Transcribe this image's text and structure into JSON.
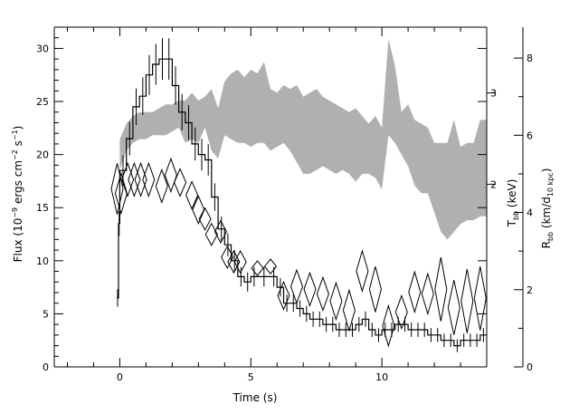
{
  "chart_data": {
    "type": "line",
    "title": "",
    "xlabel": "Time (s)",
    "ylabel_left": {
      "main": "Flux (10",
      "exp1": "−9",
      "mid1": " ergs cm",
      "exp2": "−2",
      "mid2": " s",
      "exp3": "−1",
      "end": ")"
    },
    "ylabel_right_1": {
      "main": "T",
      "sub": "bb",
      "end": " (keV)"
    },
    "ylabel_right_2": {
      "main": "R",
      "sub1": "bb",
      "mid": " (km/d",
      "sub2": "10 kpc",
      "end": ")"
    },
    "xlim": [
      -2.5,
      14
    ],
    "ylim": [
      0,
      32
    ],
    "ylim_T": [
      0,
      3.72
    ],
    "ylim_R": [
      0,
      8.8
    ],
    "x_ticks": [
      0,
      5,
      10
    ],
    "y_ticks": [
      0,
      5,
      10,
      15,
      20,
      25,
      30
    ],
    "T_ticks": [
      2,
      3
    ],
    "R_ticks": [
      0,
      2,
      4,
      6,
      8
    ],
    "grid": false,
    "series": [
      {
        "kind": "flux_histogram",
        "x": [
          -0.12,
          -0.05,
          0.0,
          0.25,
          0.5,
          0.75,
          1.0,
          1.25,
          1.5,
          1.75,
          2.0,
          2.25,
          2.5,
          2.75,
          3.0,
          3.25,
          3.5,
          3.75,
          4.0,
          4.25,
          4.5,
          4.75,
          5.0,
          5.25,
          5.75,
          6.0,
          6.25,
          6.5,
          6.75,
          7.0,
          7.25,
          7.5,
          7.75,
          8.0,
          8.25,
          8.5,
          8.75,
          9.0,
          9.25,
          9.5,
          9.75,
          10.0,
          10.25,
          10.5,
          10.75,
          11.0,
          11.25,
          11.5,
          11.75,
          12.0,
          12.25,
          12.5,
          12.75,
          13.0,
          13.25,
          13.5,
          13.75
        ],
        "y": [
          6.5,
          13.5,
          18.5,
          21.5,
          24.5,
          25.5,
          27.5,
          28.5,
          29.0,
          29.0,
          26.5,
          24.0,
          23.0,
          21.0,
          20.0,
          19.5,
          16.0,
          13.0,
          11.5,
          10.0,
          8.5,
          8.0,
          8.5,
          8.5,
          8.5,
          7.5,
          6.0,
          6.0,
          5.5,
          5.0,
          4.5,
          4.5,
          4.0,
          4.0,
          3.5,
          3.5,
          3.5,
          4.0,
          4.5,
          3.5,
          3.0,
          3.5,
          3.5,
          4.0,
          4.0,
          3.5,
          3.5,
          3.5,
          3.0,
          3.0,
          2.5,
          2.5,
          2.0,
          2.5,
          2.5,
          2.5,
          3.0
        ],
        "x_end": 14.0
      },
      {
        "kind": "temperature_diamonds",
        "x": [
          -0.1,
          0.05,
          0.3,
          0.55,
          0.8,
          1.1,
          1.6,
          1.95,
          2.3,
          2.75,
          3.0,
          3.25,
          3.5,
          3.85,
          4.1,
          4.35,
          4.6,
          5.25,
          5.75,
          6.25,
          6.75,
          7.25,
          7.75,
          8.25,
          8.75,
          9.25,
          9.75,
          10.25,
          10.75,
          11.25,
          11.75,
          12.25,
          12.75,
          13.25,
          13.75
        ],
        "y": [
          1.95,
          1.9,
          2.05,
          2.05,
          2.05,
          2.05,
          1.98,
          2.1,
          2.02,
          1.88,
          1.72,
          1.62,
          1.45,
          1.48,
          1.2,
          1.15,
          1.15,
          1.08,
          1.1,
          0.78,
          0.88,
          0.85,
          0.8,
          0.72,
          0.62,
          1.05,
          0.85,
          0.45,
          0.6,
          0.82,
          0.8,
          0.85,
          0.65,
          0.72,
          0.75
        ],
        "err": [
          0.28,
          0.22,
          0.18,
          0.18,
          0.18,
          0.18,
          0.18,
          0.18,
          0.15,
          0.15,
          0.15,
          0.12,
          0.12,
          0.12,
          0.12,
          0.12,
          0.12,
          0.08,
          0.08,
          0.15,
          0.18,
          0.18,
          0.18,
          0.2,
          0.22,
          0.22,
          0.25,
          0.22,
          0.18,
          0.22,
          0.22,
          0.35,
          0.3,
          0.35,
          0.35
        ]
      },
      {
        "kind": "radius_band",
        "x": [
          0.0,
          0.25,
          0.5,
          0.75,
          1.0,
          1.25,
          1.5,
          1.75,
          2.0,
          2.25,
          2.5,
          2.75,
          3.0,
          3.25,
          3.5,
          3.75,
          4.0,
          4.25,
          4.5,
          4.75,
          5.0,
          5.25,
          5.5,
          5.75,
          6.0,
          6.25,
          6.5,
          6.75,
          7.0,
          7.25,
          7.5,
          7.75,
          8.0,
          8.25,
          8.5,
          8.75,
          9.0,
          9.25,
          9.5,
          9.75,
          10.0,
          10.25,
          10.5,
          10.75,
          11.0,
          11.25,
          11.5,
          11.75,
          12.0,
          12.25,
          12.5,
          12.75,
          13.0,
          13.25,
          13.5,
          13.75,
          14.0
        ],
        "lower": [
          5.1,
          5.6,
          5.8,
          5.9,
          5.9,
          6.0,
          6.0,
          6.0,
          6.1,
          6.2,
          5.8,
          5.9,
          5.8,
          6.2,
          5.6,
          5.4,
          6.0,
          5.9,
          5.8,
          5.8,
          5.7,
          5.8,
          5.8,
          5.6,
          5.7,
          5.8,
          5.6,
          5.3,
          5.0,
          5.0,
          5.1,
          5.2,
          5.1,
          5.0,
          5.1,
          5.0,
          4.8,
          5.0,
          5.0,
          4.9,
          4.6,
          6.0,
          5.8,
          5.5,
          5.2,
          4.7,
          4.5,
          4.5,
          4.0,
          3.5,
          3.3,
          3.5,
          3.7,
          3.8,
          3.8,
          3.9,
          3.9
        ],
        "upper": [
          5.9,
          6.3,
          6.5,
          6.6,
          6.6,
          6.6,
          6.7,
          6.8,
          6.8,
          6.9,
          6.9,
          7.1,
          6.9,
          7.0,
          7.2,
          6.7,
          7.4,
          7.6,
          7.7,
          7.5,
          7.7,
          7.6,
          7.9,
          7.2,
          7.1,
          7.3,
          7.2,
          7.3,
          7.0,
          7.1,
          7.2,
          7.0,
          6.9,
          6.8,
          6.7,
          6.6,
          6.7,
          6.5,
          6.3,
          6.5,
          6.2,
          8.5,
          7.8,
          6.6,
          6.8,
          6.4,
          6.3,
          6.2,
          5.8,
          5.8,
          5.8,
          6.4,
          5.7,
          5.8,
          5.8,
          6.4,
          6.4
        ]
      }
    ]
  },
  "colors": {
    "band_fill": "#b0b0b0",
    "line": "#000000",
    "background": "#ffffff"
  }
}
